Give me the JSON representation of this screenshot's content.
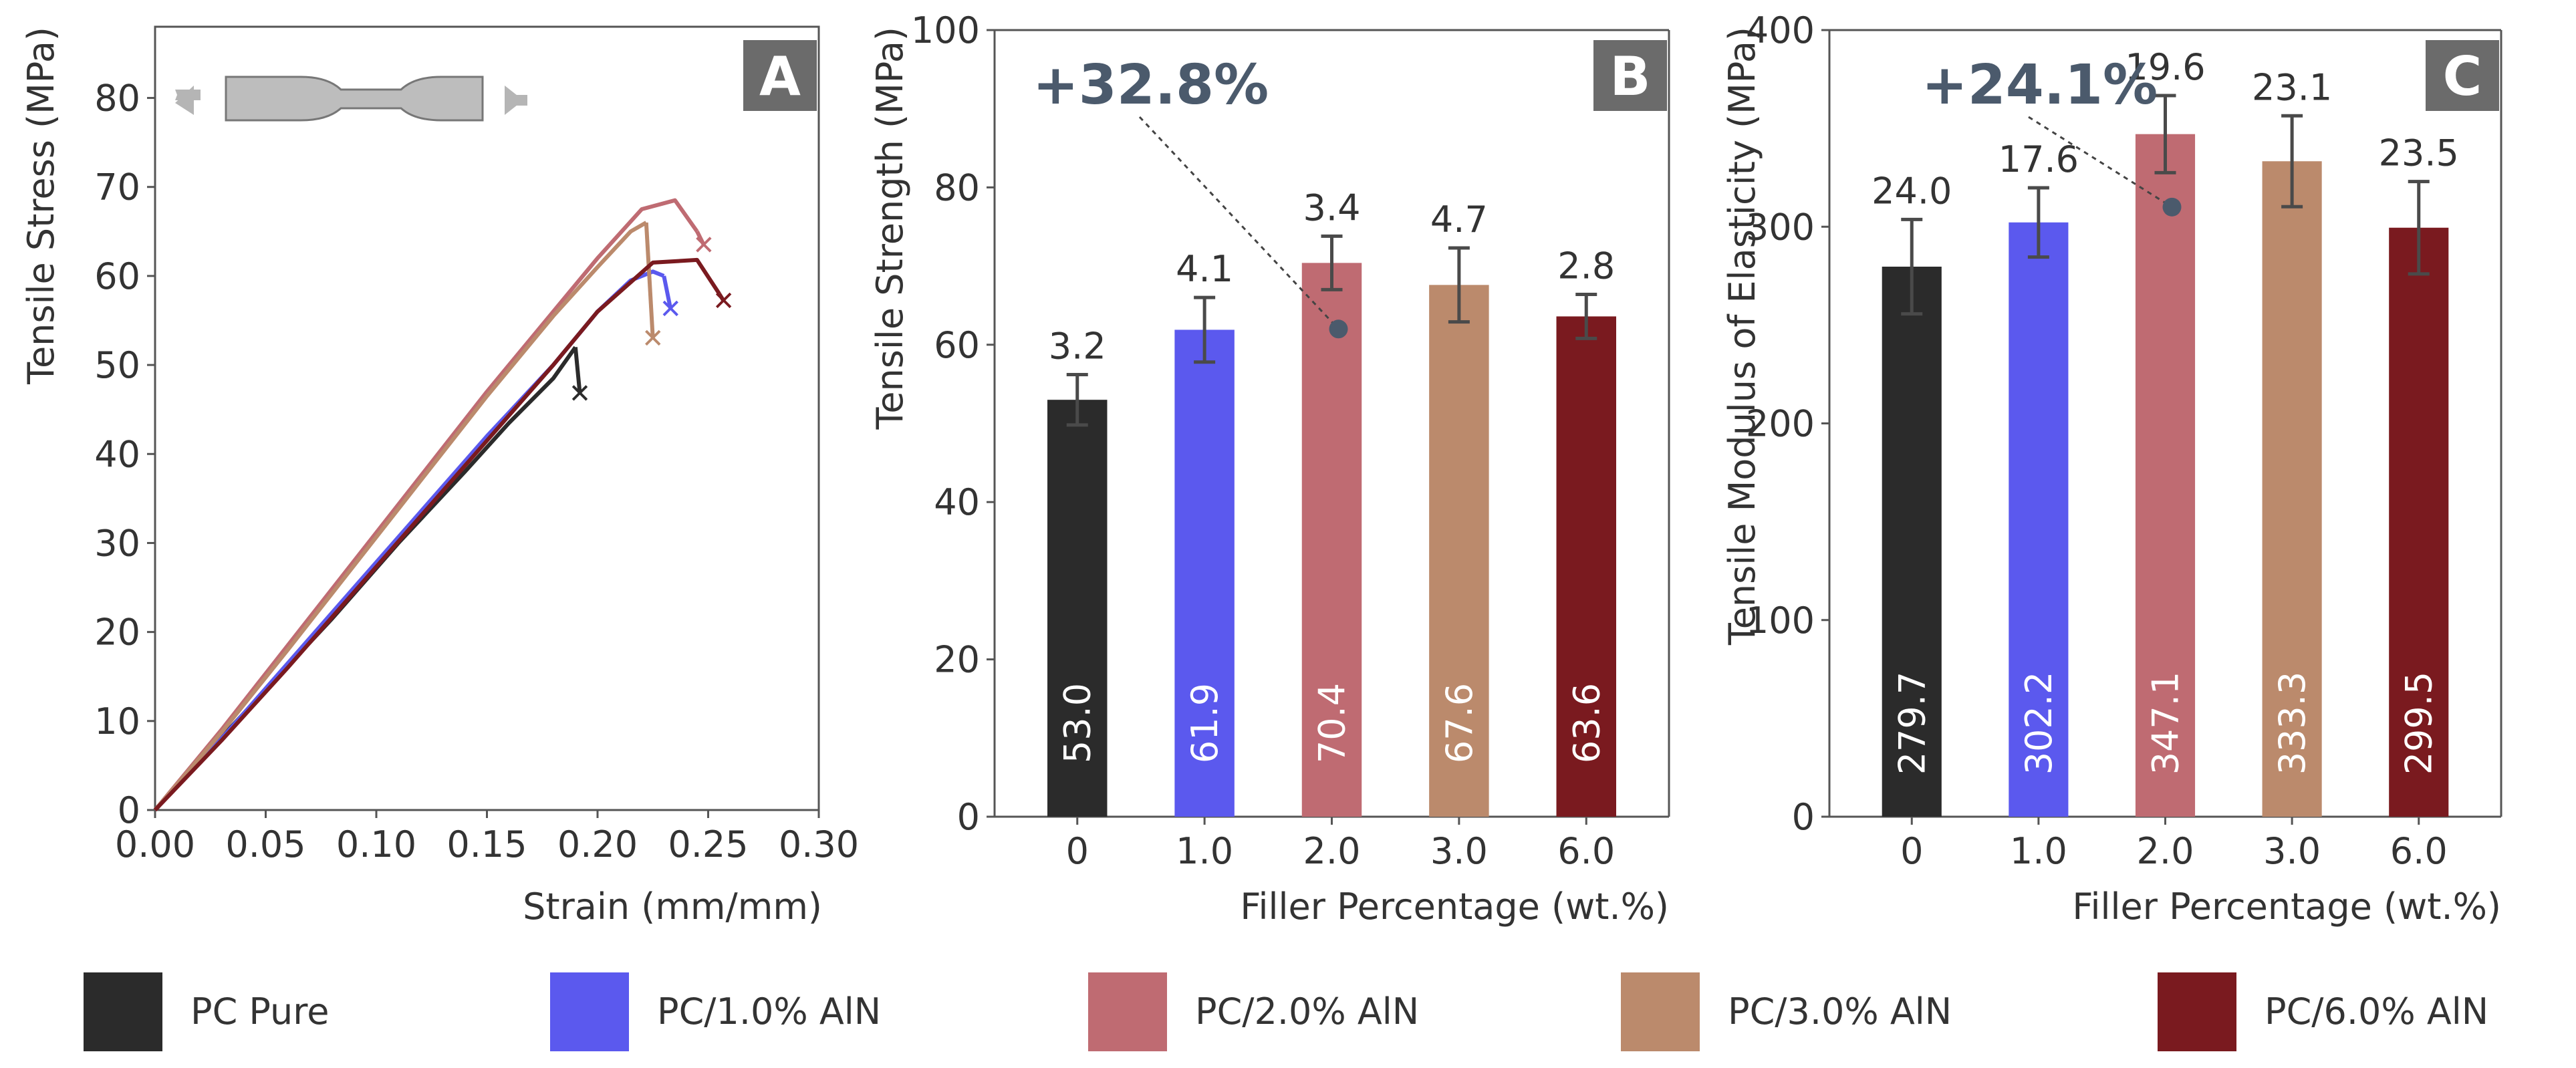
{
  "colors": {
    "PC Pure": "#2b2b2b",
    "PC/1.0% AlN": "#5b59ee",
    "PC/2.0% AlN": "#bf6b72",
    "PC/3.0% AlN": "#bb8a6c",
    "PC/6.0% AlN": "#7a1a1f",
    "annotation": "#4b5a6c",
    "axis": "#555555",
    "panel_label_bg": "#6b6b6b"
  },
  "legend": [
    "PC Pure",
    "PC/1.0% AlN",
    "PC/2.0% AlN",
    "PC/3.0% AlN",
    "PC/6.0% AlN"
  ],
  "chart_data": [
    {
      "type": "line",
      "panel": "A",
      "xlabel": "Strain (mm/mm)",
      "ylabel": "Tensile Stress (MPa)",
      "xlim": [
        0,
        0.3
      ],
      "ylim": [
        0,
        88
      ],
      "xticks": [
        "0.00",
        "0.05",
        "0.10",
        "0.15",
        "0.20",
        "0.25",
        "0.30"
      ],
      "yticks": [
        "0",
        "10",
        "20",
        "30",
        "40",
        "50",
        "60",
        "70",
        "80"
      ],
      "series": [
        {
          "name": "PC Pure",
          "x": [
            0,
            0.02,
            0.05,
            0.08,
            0.11,
            0.14,
            0.16,
            0.18,
            0.19
          ],
          "y": [
            0,
            5.5,
            13.5,
            21.5,
            30,
            38,
            43.5,
            48.5,
            52
          ],
          "failure": [
            0.192,
            46.8
          ]
        },
        {
          "name": "PC/1.0% AlN",
          "x": [
            0,
            0.03,
            0.06,
            0.09,
            0.12,
            0.15,
            0.18,
            0.2,
            0.215,
            0.225,
            0.23
          ],
          "y": [
            0,
            8,
            16.5,
            25,
            33.5,
            42,
            50,
            56,
            59.5,
            60.5,
            60
          ],
          "failure": [
            0.233,
            56.3
          ]
        },
        {
          "name": "PC/2.0% AlN",
          "x": [
            0,
            0.03,
            0.06,
            0.09,
            0.12,
            0.15,
            0.18,
            0.2,
            0.22,
            0.235,
            0.245
          ],
          "y": [
            0,
            9,
            18.5,
            28,
            37.5,
            47,
            56,
            62,
            67.5,
            68.5,
            65
          ],
          "failure": [
            0.248,
            63.5
          ]
        },
        {
          "name": "PC/3.0% AlN",
          "x": [
            0,
            0.03,
            0.06,
            0.09,
            0.12,
            0.15,
            0.18,
            0.2,
            0.215,
            0.222
          ],
          "y": [
            0,
            8.7,
            18,
            27.5,
            37,
            46.5,
            55.5,
            61,
            65,
            66
          ]
        },
        {
          "name": "PC/6.0% AlN",
          "x": [
            0,
            0.03,
            0.06,
            0.09,
            0.12,
            0.15,
            0.18,
            0.2,
            0.225,
            0.245,
            0.255
          ],
          "y": [
            0,
            7.8,
            16,
            24.5,
            33,
            41.5,
            50,
            56,
            61.5,
            61.8,
            58
          ],
          "failure": [
            0.257,
            57.2
          ]
        }
      ],
      "failure_3wt": [
        0.225,
        53.0
      ],
      "panel_label": "A"
    },
    {
      "type": "bar",
      "panel": "B",
      "xlabel": "Filler Percentage (wt.%)",
      "ylabel": "Tensile Strength (MPa)",
      "ylim": [
        0,
        100
      ],
      "yticks": [
        "0",
        "20",
        "40",
        "60",
        "80",
        "100"
      ],
      "categories": [
        "0",
        "1.0",
        "2.0",
        "3.0",
        "6.0"
      ],
      "values": [
        53.0,
        61.9,
        70.4,
        67.6,
        63.6
      ],
      "value_labels": [
        "53.0",
        "61.9",
        "70.4",
        "67.6",
        "63.6"
      ],
      "errors": [
        3.2,
        4.1,
        3.4,
        4.7,
        2.8
      ],
      "error_labels": [
        "3.2",
        "4.1",
        "3.4",
        "4.7",
        "2.8"
      ],
      "annotation": {
        "text": "+32.8%",
        "point_category": "2.0",
        "point_value": 62
      }
    },
    {
      "type": "bar",
      "panel": "C",
      "xlabel": "Filler Percentage (wt.%)",
      "ylabel": "Tensile Modulus of Elasticity (MPa)",
      "ylim": [
        0,
        400
      ],
      "yticks": [
        "0",
        "100",
        "200",
        "300",
        "400"
      ],
      "categories": [
        "0",
        "1.0",
        "2.0",
        "3.0",
        "6.0"
      ],
      "values": [
        279.7,
        302.2,
        347.1,
        333.3,
        299.5
      ],
      "value_labels": [
        "279.7",
        "302.2",
        "347.1",
        "333.3",
        "299.5"
      ],
      "errors": [
        24.0,
        17.6,
        19.6,
        23.1,
        23.5
      ],
      "error_labels": [
        "24.0",
        "17.6",
        "19.6",
        "23.1",
        "23.5"
      ],
      "annotation": {
        "text": "+24.1%",
        "point_category": "2.0",
        "point_value": 310
      }
    }
  ]
}
